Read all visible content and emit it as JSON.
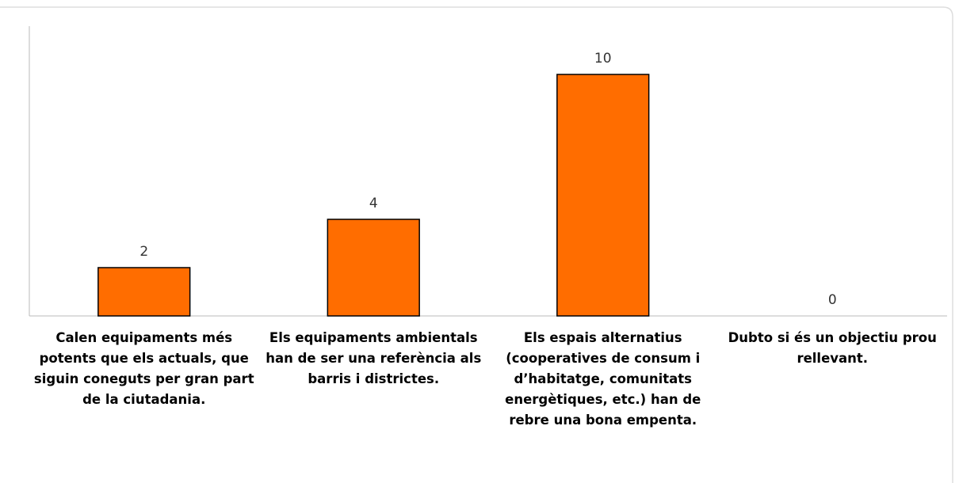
{
  "chart_data": {
    "type": "bar",
    "categories": [
      "Calen equipaments més potents que els actuals, que siguin coneguts per gran part de la ciutadania.",
      "Els equipaments ambientals han de ser una referència als barris i districtes.",
      "Els espais alternatius (cooperatives de consum i d’habitatge, comunitats energètiques, etc.) han de rebre una bona empenta.",
      "Dubto si és un objectiu prou rellevant."
    ],
    "values": [
      2,
      4,
      10,
      0
    ],
    "color": "#ff6d00",
    "ylim": [
      0,
      12
    ],
    "grid": false
  }
}
